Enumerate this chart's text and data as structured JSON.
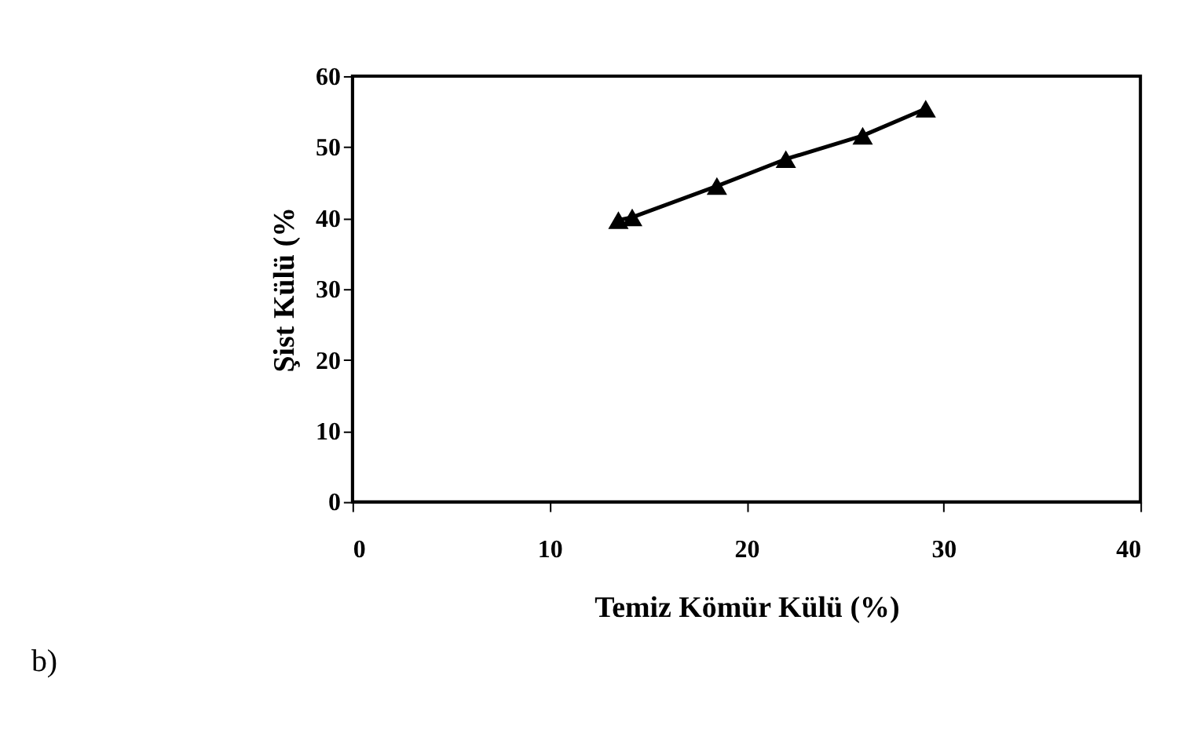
{
  "chart_data": {
    "type": "line",
    "xlabel": "Temiz Kömür Külü (%)",
    "ylabel": "Şist Külü (%",
    "x": [
      13.5,
      14.2,
      18.5,
      22.0,
      25.9,
      29.1
    ],
    "series": [
      {
        "color": "#000000",
        "values": [
          39.7,
          40.1,
          44.5,
          48.3,
          51.6,
          55.4
        ]
      }
    ],
    "xlim": [
      0,
      40
    ],
    "ylim": [
      0,
      60
    ],
    "xticks": [
      0,
      10,
      20,
      30,
      40
    ],
    "yticks": [
      0,
      10,
      20,
      30,
      40,
      50,
      60
    ],
    "grid": false,
    "legend": false,
    "marker": "triangle",
    "line_style": "solid",
    "annotations": [
      "b)"
    ]
  }
}
